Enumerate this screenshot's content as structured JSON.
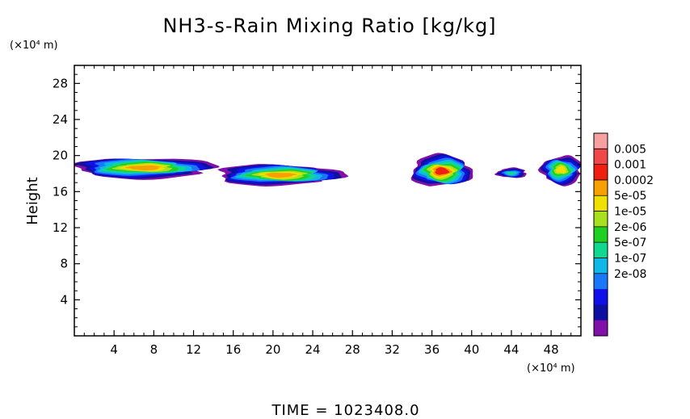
{
  "chart_data": {
    "type": "heatmap",
    "title": "NH3-s-Rain Mixing Ratio [kg/kg]",
    "ylabel": "Height",
    "y_unit": "(×10⁴ m)",
    "x_unit": "(×10⁴ m)",
    "footer": "TIME = 1023408.0",
    "x_ticks": [
      4,
      8,
      12,
      16,
      20,
      24,
      28,
      32,
      36,
      40,
      44,
      48
    ],
    "y_ticks": [
      4,
      8,
      12,
      16,
      20,
      24,
      28
    ],
    "xlim": [
      0,
      51
    ],
    "ylim": [
      0,
      30
    ],
    "grid": false,
    "colorbar": {
      "labels": [
        "0.005",
        "0.001",
        "0.0002",
        "5e-05",
        "1e-05",
        "2e-06",
        "5e-07",
        "1e-07",
        "2e-08"
      ],
      "colors": [
        "#f7a0a0",
        "#f04848",
        "#f02010",
        "#f8a000",
        "#f0e000",
        "#a8e020",
        "#20d020",
        "#10d890",
        "#10b8e8",
        "#1878f8",
        "#1010e8",
        "#1010a0",
        "#8010a8"
      ]
    },
    "regions": [
      {
        "x_range": [
          0,
          14
        ],
        "y_range": [
          17.5,
          19.8
        ],
        "max_level": "5e-05"
      },
      {
        "x_range": [
          14.5,
          27
        ],
        "y_range": [
          16.7,
          19.0
        ],
        "max_level": "5e-05"
      },
      {
        "x_range": [
          34,
          40
        ],
        "y_range": [
          16.5,
          20.0
        ],
        "max_level": "0.0002"
      },
      {
        "x_range": [
          42.5,
          45.5
        ],
        "y_range": [
          17.5,
          18.6
        ],
        "max_level": "1e-07"
      },
      {
        "x_range": [
          47,
          51
        ],
        "y_range": [
          16.8,
          20.0
        ],
        "max_level": "1e-05"
      }
    ]
  }
}
